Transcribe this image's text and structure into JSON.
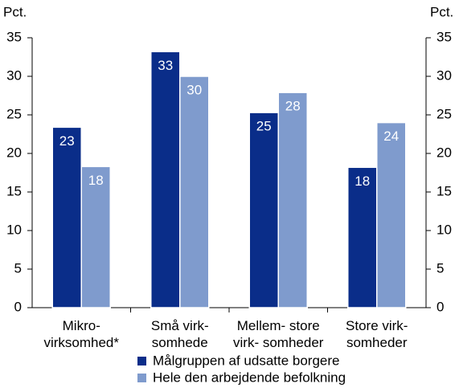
{
  "chart_data": {
    "type": "bar",
    "y_label": "Pct.",
    "y2_label": "Pct.",
    "categories": [
      "Mikro-\nvirksomhed*",
      "Små virk-\nsomhede",
      "Mellem- store\nvirk- somheder",
      "Store virk-\nsomheder"
    ],
    "series": [
      {
        "name": "Målgruppen af udsatte borgere",
        "color": "#0a2d89",
        "values": [
          23.4,
          33.2,
          25.3,
          18.2
        ],
        "value_labels": [
          "23",
          "33",
          "25",
          "18"
        ]
      },
      {
        "name": "Hele den arbejdende befolkning",
        "color": "#7f9bcd",
        "values": [
          18.3,
          30.0,
          27.9,
          24.0
        ],
        "value_labels": [
          "18",
          "30",
          "28",
          "24"
        ]
      }
    ],
    "ylim": [
      0,
      35
    ],
    "yticks": [
      0,
      5,
      10,
      15,
      20,
      25,
      30,
      35
    ],
    "y2lim": [
      0,
      35
    ],
    "y2ticks": [
      0,
      5,
      10,
      15,
      20,
      25,
      30,
      35
    ],
    "grid": false
  }
}
